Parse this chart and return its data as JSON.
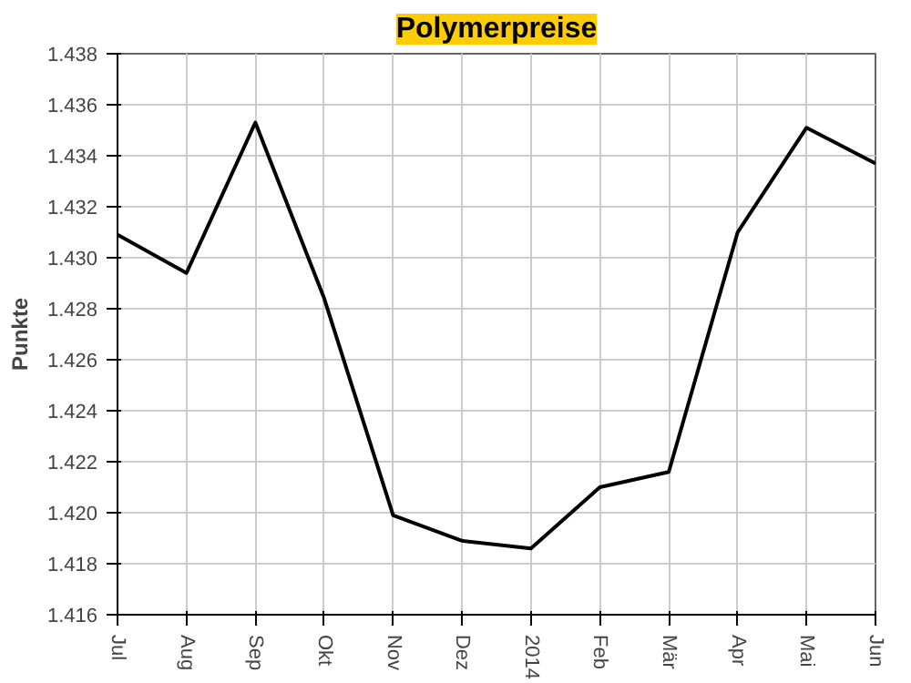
{
  "chart_data": {
    "type": "line",
    "title": "Polymerpreise",
    "ylabel": "Punkte",
    "categories": [
      "Jul",
      "Aug",
      "Sep",
      "Okt",
      "Nov",
      "Dez",
      "2014",
      "Feb",
      "Mär",
      "Apr",
      "Mai",
      "Jun"
    ],
    "series": [
      {
        "color": "#000000",
        "values": [
          1.4309,
          1.4294,
          1.4353,
          1.4284,
          1.4199,
          1.4189,
          1.4186,
          1.421,
          1.4216,
          1.431,
          1.4351,
          1.4337
        ]
      }
    ],
    "ylim": [
      1.416,
      1.438
    ],
    "yticks": [
      {
        "value": 1.416,
        "label": "1.416"
      },
      {
        "value": 1.418,
        "label": "1.418"
      },
      {
        "value": 1.42,
        "label": "1.420"
      },
      {
        "value": 1.422,
        "label": "1.422"
      },
      {
        "value": 1.424,
        "label": "1.424"
      },
      {
        "value": 1.426,
        "label": "1.426"
      },
      {
        "value": 1.428,
        "label": "1.428"
      },
      {
        "value": 1.43,
        "label": "1.430"
      },
      {
        "value": 1.432,
        "label": "1.432"
      },
      {
        "value": 1.434,
        "label": "1.434"
      },
      {
        "value": 1.436,
        "label": "1.436"
      },
      {
        "value": 1.438,
        "label": "1.438"
      }
    ],
    "grid": true,
    "marker": "none",
    "line_style": "solid"
  }
}
